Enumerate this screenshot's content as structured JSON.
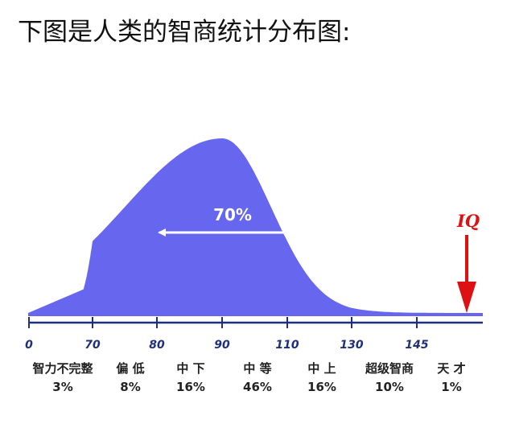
{
  "heading": "下图是人类的智商统计分布图:",
  "colors": {
    "curve_fill": "#6666ee",
    "axis": "#1f2f7a",
    "tick_text": "#1f2f7a",
    "arrow": "#dd1111",
    "annotation": "#ffffff"
  },
  "chart_data": {
    "type": "area",
    "title": "",
    "xlabel": "",
    "ylabel": "",
    "distribution": {
      "mean": 90,
      "sd": 15
    },
    "x_ticks": [
      0,
      70,
      80,
      90,
      110,
      130,
      145
    ],
    "categories": [
      {
        "name": "智力不完整",
        "percent": "3%"
      },
      {
        "name": "偏 低",
        "percent": "8%"
      },
      {
        "name": "中 下",
        "percent": "16%"
      },
      {
        "name": "中 等",
        "percent": "46%"
      },
      {
        "name": "中 上",
        "percent": "16%"
      },
      {
        "name": "超级智商",
        "percent": "10%"
      },
      {
        "name": "天 才",
        "percent": "1%"
      }
    ],
    "annotations": {
      "center_range": "70%",
      "pointer_label": "IQ"
    }
  }
}
